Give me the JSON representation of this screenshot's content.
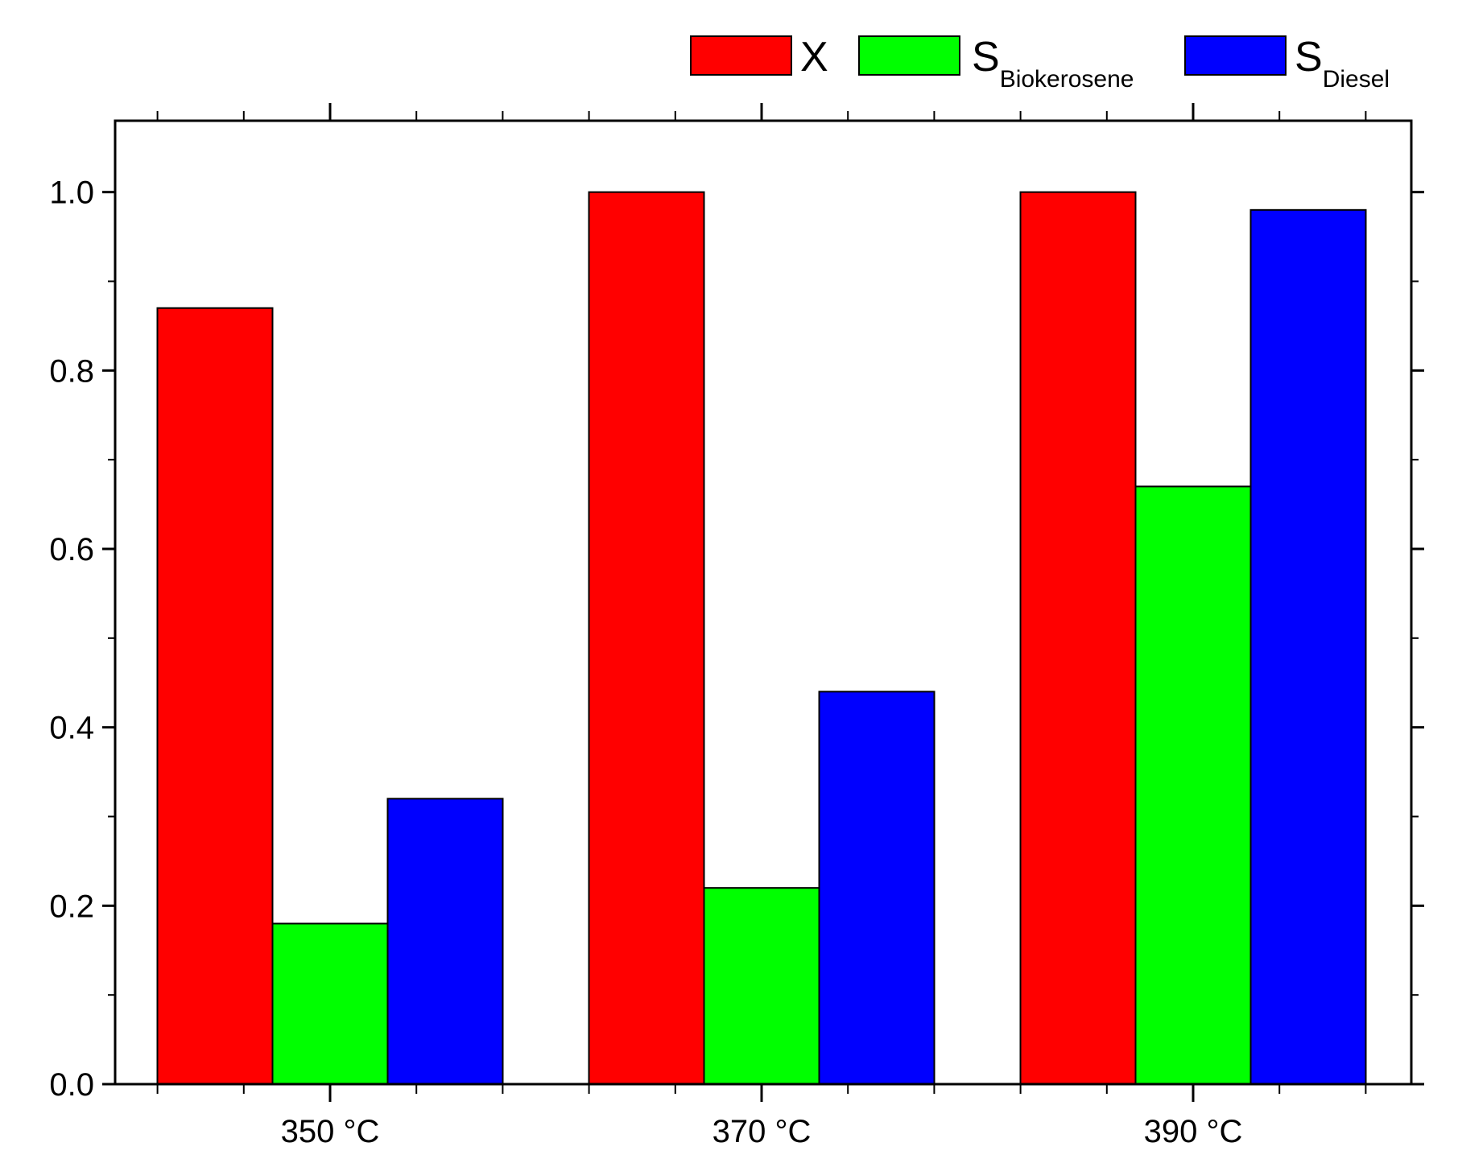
{
  "chart_data": {
    "type": "bar",
    "title": "",
    "xlabel": "",
    "ylabel": "",
    "categories": [
      "350 °C",
      "370 °C",
      "390 °C"
    ],
    "series": [
      {
        "name": "X",
        "name_main": "X",
        "name_sub": "",
        "color": "#ff0000",
        "values": [
          0.87,
          1.0,
          1.0
        ]
      },
      {
        "name": "SBiokerosene",
        "name_main": "S",
        "name_sub": "Biokerosene",
        "color": "#00ff00",
        "values": [
          0.18,
          0.22,
          0.67
        ]
      },
      {
        "name": "SDiesel",
        "name_main": "S",
        "name_sub": "Diesel",
        "color": "#0000ff",
        "values": [
          0.32,
          0.44,
          0.98
        ]
      }
    ],
    "ylim": [
      0,
      1.08
    ],
    "yticks": [
      "0.0",
      "0.2",
      "0.4",
      "0.6",
      "0.8",
      "1.0"
    ],
    "grid": false,
    "legend_position": "top-right, outside plot"
  }
}
